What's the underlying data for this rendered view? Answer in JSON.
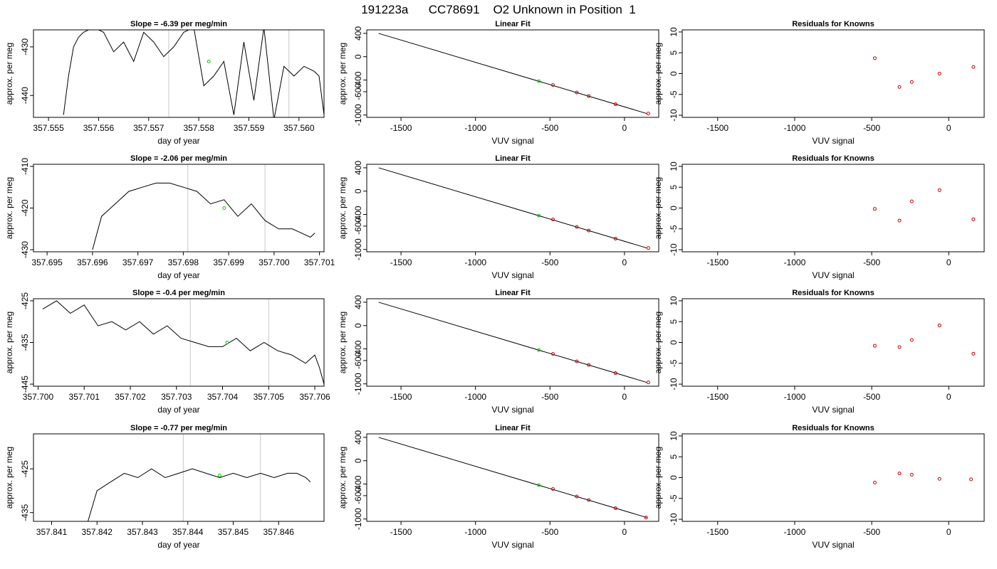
{
  "page_title": "191223a      CC78691    O2 Unknown in Position  1",
  "chart_data": [
    {
      "type": "line",
      "panel": "timeseries",
      "row": 0,
      "title": "Slope =  -6.39  per meg/min",
      "xlabel": "day of year",
      "ylabel": "approx. per meg",
      "xlim": [
        357.5547,
        357.5605
      ],
      "ylim": [
        -444.5,
        -426.5
      ],
      "xticks": [
        357.555,
        357.556,
        357.557,
        357.558,
        357.559,
        357.56
      ],
      "xtick_labels": [
        "357.555",
        "357.556",
        "357.557",
        "357.558",
        "357.559",
        "357.560"
      ],
      "yticks": [
        -440,
        -430
      ],
      "ytick_labels": [
        "-440",
        "-430"
      ],
      "vlines": [
        357.5574,
        357.5598
      ],
      "line_color": "#000000",
      "marker_color": "#00cc00",
      "series": [
        {
          "x": [
            357.5553,
            357.5554,
            357.5555,
            357.5556,
            357.5557,
            357.5559,
            357.5561,
            357.5563,
            357.5565,
            357.5567,
            357.5569,
            357.5571,
            357.5573,
            357.5575,
            357.5577,
            357.5579,
            357.5581,
            357.5583,
            357.5585,
            357.5587,
            357.5589,
            357.5591,
            357.5593,
            357.5595,
            357.5597,
            357.5599,
            357.5601,
            357.5603,
            357.5604,
            357.5605
          ],
          "y": [
            -444,
            -436,
            -430,
            -428,
            -427,
            -426,
            -427,
            -431,
            -429,
            -433,
            -427,
            -429,
            -432,
            -430,
            -427,
            -426,
            -438,
            -436,
            -433,
            -444,
            -429,
            -441,
            -426,
            -445,
            -434,
            -436,
            -434,
            -435,
            -436,
            -444
          ]
        }
      ],
      "marker": {
        "x": 357.5582,
        "y": -433
      }
    },
    {
      "type": "scatter",
      "panel": "fit",
      "row": 0,
      "title": "Linear Fit",
      "xlabel": "VUV signal",
      "ylabel": "approx. per meg",
      "xlim": [
        -1730,
        230
      ],
      "ylim": [
        -1040,
        460
      ],
      "xticks": [
        -1500,
        -1000,
        -500,
        0
      ],
      "xtick_labels": [
        "-1500",
        "-1000",
        "-500",
        "0"
      ],
      "yticks": [
        -1000,
        -600,
        -400,
        0,
        400
      ],
      "ytick_labels": [
        "-1000",
        "-600",
        "-400",
        "0",
        "400"
      ],
      "fit_line": {
        "x": [
          -1650,
          150
        ],
        "y": [
          400,
          -975
        ]
      },
      "known_points": {
        "x": [
          -480,
          -320,
          -240,
          -60,
          160
        ],
        "y": [
          -485,
          -615,
          -675,
          -815,
          -975
        ]
      },
      "unknown_point": {
        "x": -575,
        "y": -420
      },
      "point_color": "#cc0000",
      "unknown_color": "#00cc00"
    },
    {
      "type": "scatter",
      "panel": "residuals",
      "row": 0,
      "title": "Residuals for Knowns",
      "xlabel": "VUV signal",
      "ylabel": "approx. per meg",
      "xlim": [
        -1730,
        230
      ],
      "ylim": [
        -10.5,
        10.5
      ],
      "xticks": [
        -1500,
        -1000,
        -500,
        0
      ],
      "xtick_labels": [
        "-1500",
        "-1000",
        "-500",
        "0"
      ],
      "yticks": [
        -10,
        -5,
        0,
        5,
        10
      ],
      "ytick_labels": [
        "-10",
        "-5",
        "0",
        "5",
        "10"
      ],
      "points": {
        "x": [
          -480,
          -320,
          -240,
          -60,
          160
        ],
        "y": [
          3.7,
          -3.2,
          -2.0,
          0.0,
          1.6
        ]
      },
      "point_color": "#cc0000"
    },
    {
      "type": "line",
      "panel": "timeseries",
      "row": 1,
      "title": "Slope =  -2.06  per meg/min",
      "xlabel": "day of year",
      "ylabel": "approx. per meg",
      "xlim": [
        357.6947,
        357.7011
      ],
      "ylim": [
        -430.5,
        -409.5
      ],
      "xticks": [
        357.695,
        357.696,
        357.697,
        357.698,
        357.699,
        357.7,
        357.701
      ],
      "xtick_labels": [
        "357.695",
        "357.696",
        "357.697",
        "357.698",
        "357.699",
        "357.700",
        "357.701"
      ],
      "yticks": [
        -430,
        -420,
        -410
      ],
      "ytick_labels": [
        "-430",
        "-420",
        "-410"
      ],
      "vlines": [
        357.6981,
        357.6998
      ],
      "line_color": "#000000",
      "marker_color": "#00cc00",
      "series": [
        {
          "x": [
            357.696,
            357.6962,
            357.6965,
            357.6968,
            357.6971,
            357.6974,
            357.6977,
            357.698,
            357.6983,
            357.6986,
            357.6989,
            357.6992,
            357.6995,
            357.6998,
            357.7001,
            357.7004,
            357.7006,
            357.7008,
            357.7009
          ],
          "y": [
            -430,
            -422,
            -419,
            -416,
            -415,
            -414,
            -414,
            -415,
            -416,
            -419,
            -418,
            -422,
            -419,
            -423,
            -425,
            -425,
            -426,
            -427,
            -426
          ]
        }
      ],
      "marker": {
        "x": 357.6989,
        "y": -420
      }
    },
    {
      "type": "scatter",
      "panel": "fit",
      "row": 1,
      "title": "Linear Fit",
      "xlabel": "VUV signal",
      "ylabel": "approx. per meg",
      "xlim": [
        -1730,
        230
      ],
      "ylim": [
        -1040,
        460
      ],
      "xticks": [
        -1500,
        -1000,
        -500,
        0
      ],
      "xtick_labels": [
        "-1500",
        "-1000",
        "-500",
        "0"
      ],
      "yticks": [
        -1000,
        -600,
        -400,
        0,
        400
      ],
      "ytick_labels": [
        "-1000",
        "-600",
        "-400",
        "0",
        "400"
      ],
      "fit_line": {
        "x": [
          -1650,
          150
        ],
        "y": [
          400,
          -975
        ]
      },
      "known_points": {
        "x": [
          -480,
          -320,
          -240,
          -60,
          160
        ],
        "y": [
          -485,
          -615,
          -675,
          -815,
          -975
        ]
      },
      "unknown_point": {
        "x": -575,
        "y": -420
      },
      "point_color": "#cc0000",
      "unknown_color": "#00cc00"
    },
    {
      "type": "scatter",
      "panel": "residuals",
      "row": 1,
      "title": "Residuals for Knowns",
      "xlabel": "VUV signal",
      "ylabel": "approx. per meg",
      "xlim": [
        -1730,
        230
      ],
      "ylim": [
        -10.5,
        10.5
      ],
      "xticks": [
        -1500,
        -1000,
        -500,
        0
      ],
      "xtick_labels": [
        "-1500",
        "-1000",
        "-500",
        "0"
      ],
      "yticks": [
        -10,
        -5,
        0,
        5,
        10
      ],
      "ytick_labels": [
        "-10",
        "-5",
        "0",
        "5",
        "10"
      ],
      "points": {
        "x": [
          -480,
          -320,
          -240,
          -60,
          160
        ],
        "y": [
          -0.2,
          -3.0,
          1.6,
          4.3,
          -2.7
        ]
      },
      "point_color": "#cc0000"
    },
    {
      "type": "line",
      "panel": "timeseries",
      "row": 2,
      "title": "Slope =  -0.4  per meg/min",
      "xlabel": "day of year",
      "ylabel": "approx. per meg",
      "xlim": [
        357.6999,
        357.7062
      ],
      "ylim": [
        -445.5,
        -424.5
      ],
      "xticks": [
        357.7,
        357.701,
        357.702,
        357.703,
        357.704,
        357.705,
        357.706
      ],
      "xtick_labels": [
        "357.700",
        "357.701",
        "357.702",
        "357.703",
        "357.704",
        "357.705",
        "357.706"
      ],
      "yticks": [
        -445,
        -435,
        -425
      ],
      "ytick_labels": [
        "-445",
        "-435",
        "-425"
      ],
      "vlines": [
        357.7033,
        357.705
      ],
      "line_color": "#000000",
      "marker_color": "#00cc00",
      "series": [
        {
          "x": [
            357.7001,
            357.7004,
            357.7007,
            357.701,
            357.7013,
            357.7016,
            357.7019,
            357.7022,
            357.7025,
            357.7028,
            357.7031,
            357.7034,
            357.7037,
            357.704,
            357.7043,
            357.7046,
            357.7049,
            357.7052,
            357.7055,
            357.7058,
            357.706,
            357.7061,
            357.7062
          ],
          "y": [
            -427,
            -425,
            -428,
            -426,
            -431,
            -430,
            -432,
            -430,
            -433,
            -431,
            -434,
            -435,
            -436,
            -436,
            -434,
            -437,
            -435,
            -437,
            -438,
            -440,
            -438,
            -441,
            -445
          ]
        }
      ],
      "marker": {
        "x": 357.7041,
        "y": -435
      }
    },
    {
      "type": "scatter",
      "panel": "fit",
      "row": 2,
      "title": "Linear Fit",
      "xlabel": "VUV signal",
      "ylabel": "approx. per meg",
      "xlim": [
        -1730,
        230
      ],
      "ylim": [
        -1040,
        460
      ],
      "xticks": [
        -1500,
        -1000,
        -500,
        0
      ],
      "xtick_labels": [
        "-1500",
        "-1000",
        "-500",
        "0"
      ],
      "yticks": [
        -1000,
        -600,
        -400,
        0,
        400
      ],
      "ytick_labels": [
        "-1000",
        "-600",
        "-400",
        "0",
        "400"
      ],
      "fit_line": {
        "x": [
          -1650,
          150
        ],
        "y": [
          400,
          -975
        ]
      },
      "known_points": {
        "x": [
          -480,
          -320,
          -240,
          -60,
          160
        ],
        "y": [
          -485,
          -615,
          -675,
          -815,
          -975
        ]
      },
      "unknown_point": {
        "x": -575,
        "y": -420
      },
      "point_color": "#cc0000",
      "unknown_color": "#00cc00"
    },
    {
      "type": "scatter",
      "panel": "residuals",
      "row": 2,
      "title": "Residuals for Knowns",
      "xlabel": "VUV signal",
      "ylabel": "approx. per meg",
      "xlim": [
        -1730,
        230
      ],
      "ylim": [
        -10.5,
        10.5
      ],
      "xticks": [
        -1500,
        -1000,
        -500,
        0
      ],
      "xtick_labels": [
        "-1500",
        "-1000",
        "-500",
        "0"
      ],
      "yticks": [
        -10,
        -5,
        0,
        5,
        10
      ],
      "ytick_labels": [
        "-10",
        "-5",
        "0",
        "5",
        "10"
      ],
      "points": {
        "x": [
          -480,
          -320,
          -240,
          -60,
          160
        ],
        "y": [
          -0.8,
          -1.1,
          0.6,
          4.1,
          -2.7
        ]
      },
      "point_color": "#cc0000"
    },
    {
      "type": "line",
      "panel": "timeseries",
      "row": 3,
      "title": "Slope =  -0.77  per meg/min",
      "xlabel": "day of year",
      "ylabel": "approx. per meg",
      "xlim": [
        357.8406,
        357.847
      ],
      "ylim": [
        -437,
        -417
      ],
      "xticks": [
        357.841,
        357.842,
        357.843,
        357.844,
        357.845,
        357.846
      ],
      "xtick_labels": [
        "357.841",
        "357.842",
        "357.843",
        "357.844",
        "357.845",
        "357.846"
      ],
      "yticks": [
        -435,
        -425
      ],
      "ytick_labels": [
        "-435",
        "-425"
      ],
      "vlines": [
        357.8439,
        357.8456
      ],
      "line_color": "#000000",
      "marker_color": "#00cc00",
      "series": [
        {
          "x": [
            357.8418,
            357.842,
            357.8423,
            357.8426,
            357.8429,
            357.8432,
            357.8435,
            357.8438,
            357.8441,
            357.8444,
            357.8447,
            357.845,
            357.8453,
            357.8456,
            357.8459,
            357.8462,
            357.8464,
            357.8466,
            357.8467
          ],
          "y": [
            -437,
            -430,
            -428,
            -426,
            -427,
            -425,
            -427,
            -426,
            -425,
            -426,
            -427,
            -426,
            -427,
            -426,
            -427,
            -426,
            -426,
            -427,
            -428
          ]
        }
      ],
      "marker": {
        "x": 357.8447,
        "y": -426.5
      }
    },
    {
      "type": "scatter",
      "panel": "fit",
      "row": 3,
      "title": "Linear Fit",
      "xlabel": "VUV signal",
      "ylabel": "approx. per meg",
      "xlim": [
        -1730,
        230
      ],
      "ylim": [
        -1040,
        460
      ],
      "xticks": [
        -1500,
        -1000,
        -500,
        0
      ],
      "xtick_labels": [
        "-1500",
        "-1000",
        "-500",
        "0"
      ],
      "yticks": [
        -1000,
        -600,
        -400,
        0,
        400
      ],
      "ytick_labels": [
        "-1000",
        "-600",
        "-400",
        "0",
        "400"
      ],
      "fit_line": {
        "x": [
          -1650,
          150
        ],
        "y": [
          400,
          -975
        ]
      },
      "known_points": {
        "x": [
          -480,
          -320,
          -240,
          -60,
          145
        ],
        "y": [
          -485,
          -615,
          -675,
          -815,
          -975
        ]
      },
      "unknown_point": {
        "x": -575,
        "y": -420
      },
      "point_color": "#cc0000",
      "unknown_color": "#00cc00"
    },
    {
      "type": "scatter",
      "panel": "residuals",
      "row": 3,
      "title": "Residuals for Knowns",
      "xlabel": "VUV signal",
      "ylabel": "approx. per meg",
      "xlim": [
        -1730,
        230
      ],
      "ylim": [
        -10.5,
        10.5
      ],
      "xticks": [
        -1500,
        -1000,
        -500,
        0
      ],
      "xtick_labels": [
        "-1500",
        "-1000",
        "-500",
        "0"
      ],
      "yticks": [
        -10,
        -5,
        0,
        5,
        10
      ],
      "ytick_labels": [
        "-10",
        "-5",
        "0",
        "5",
        "10"
      ],
      "points": {
        "x": [
          -480,
          -320,
          -240,
          -60,
          145
        ],
        "y": [
          -1.2,
          1.0,
          0.7,
          -0.3,
          -0.4
        ]
      },
      "point_color": "#cc0000"
    }
  ]
}
